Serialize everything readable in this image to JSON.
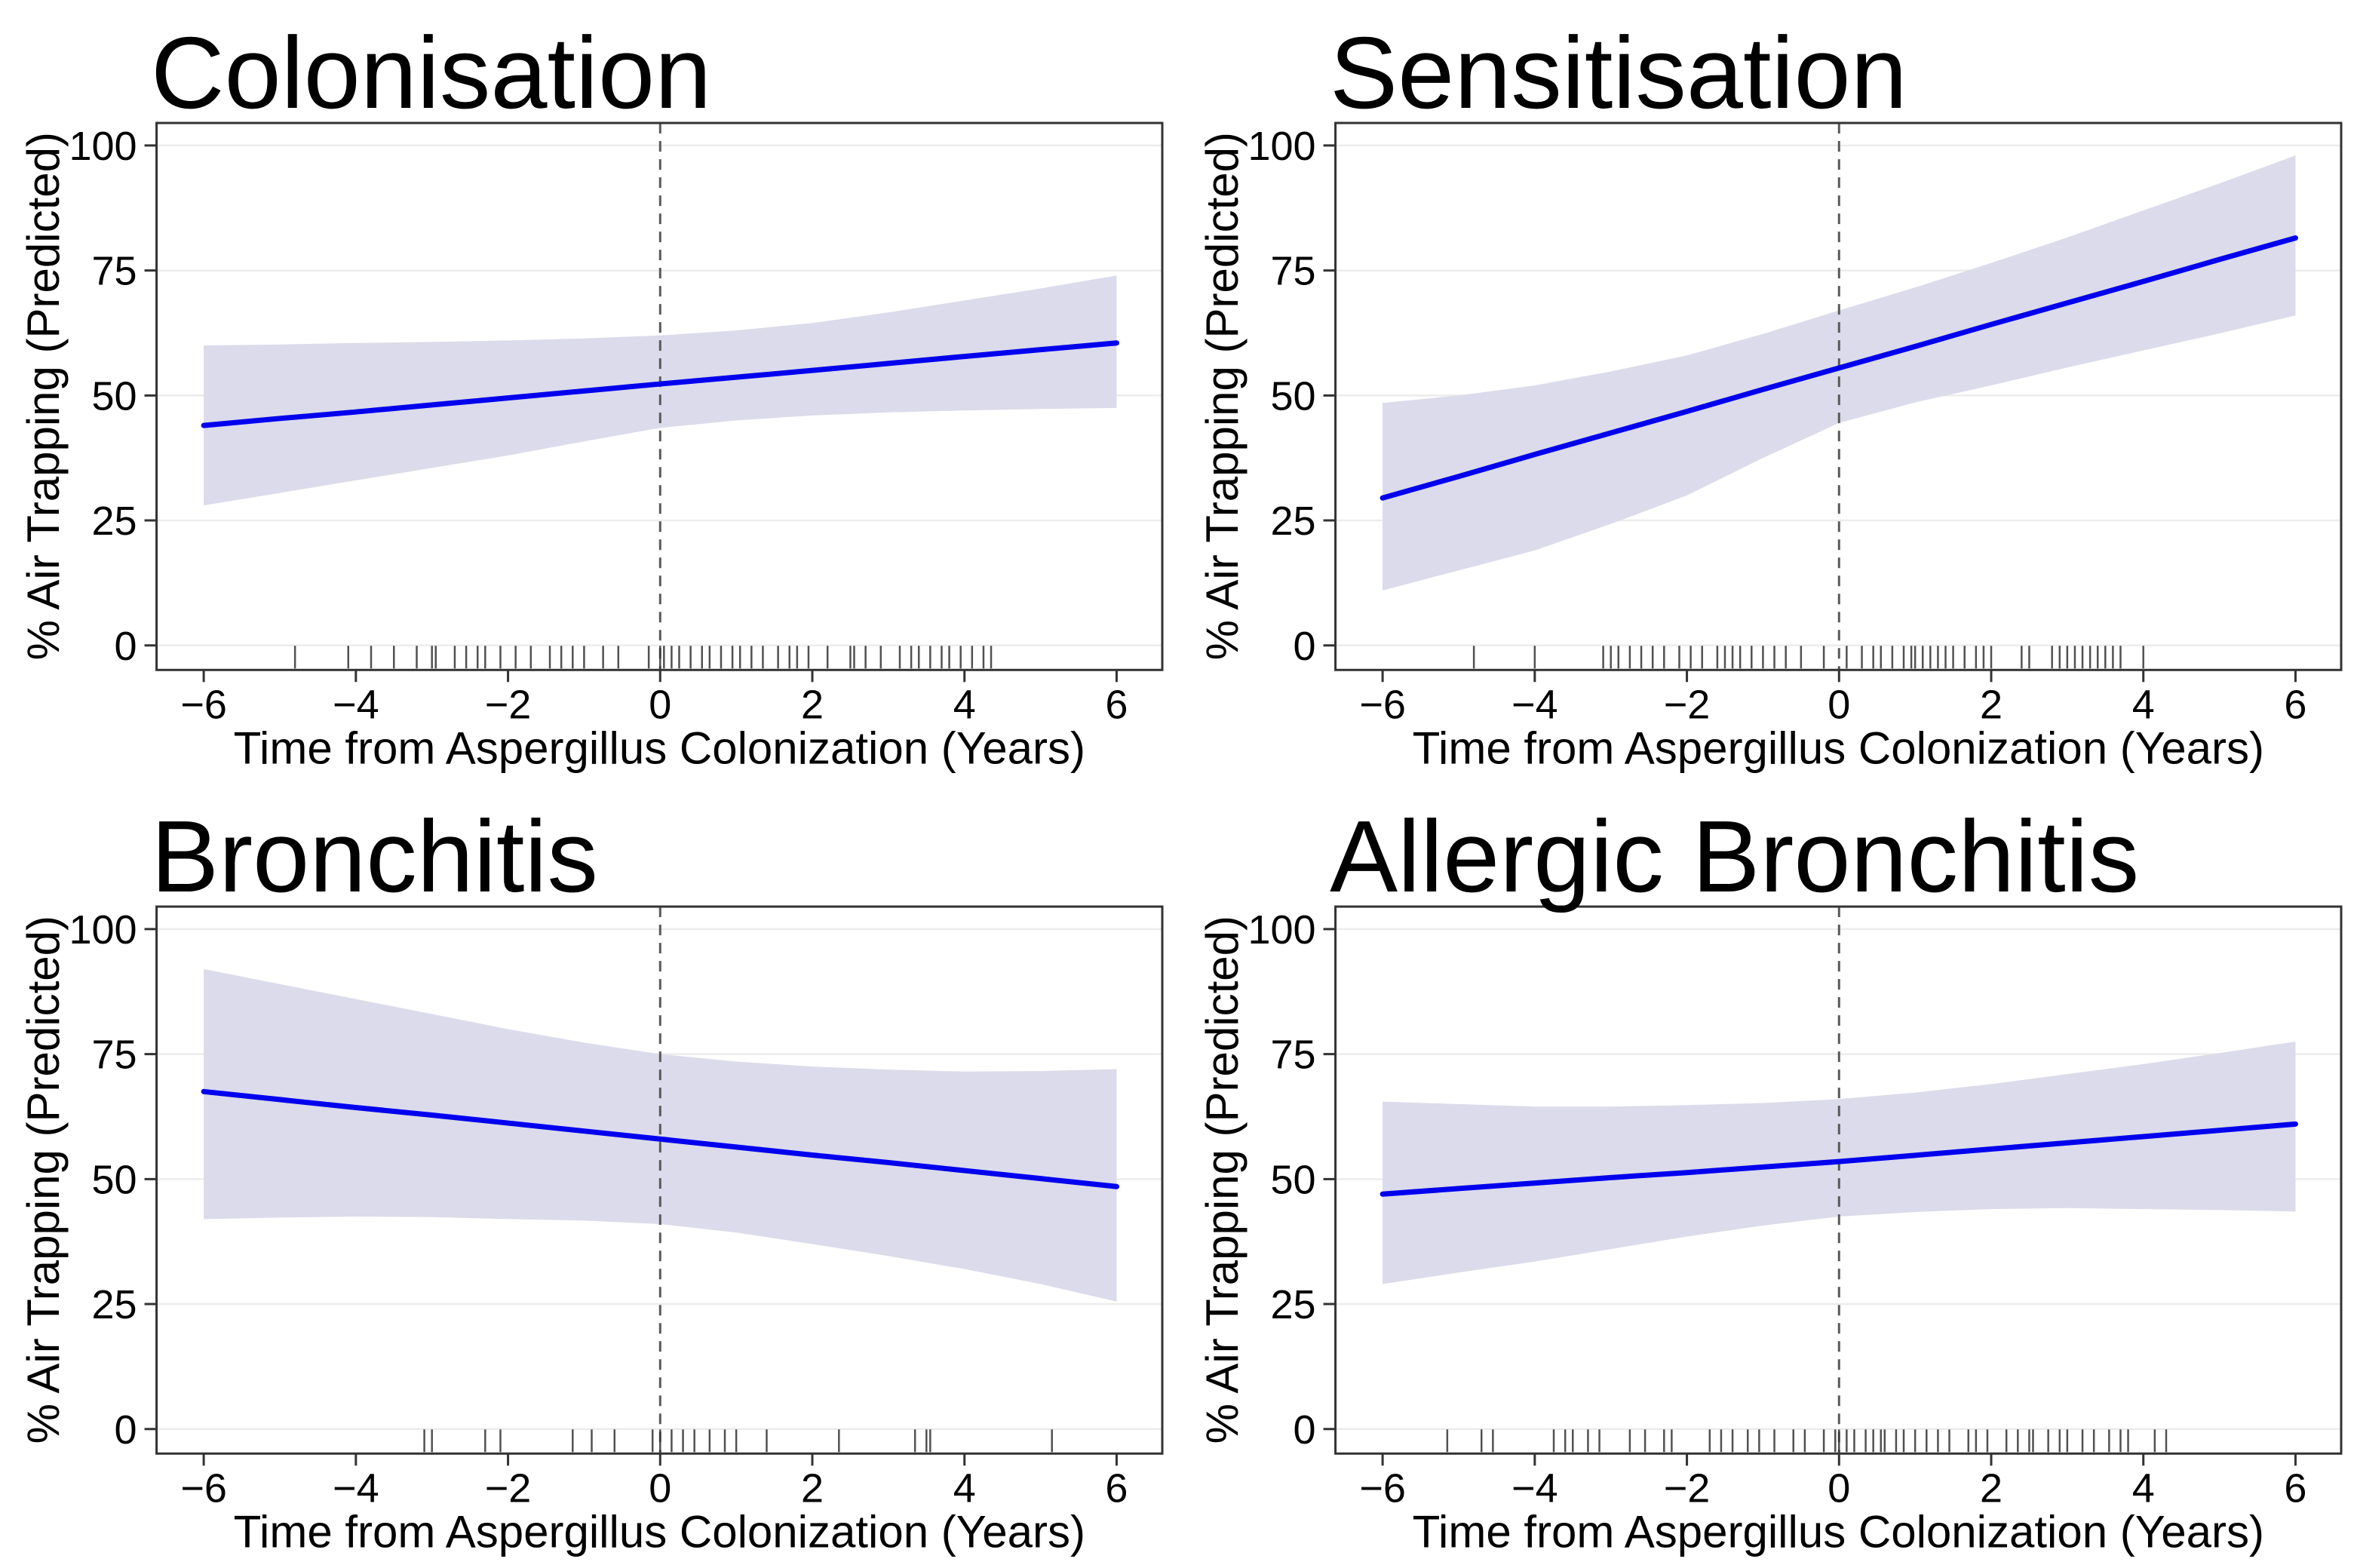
{
  "figure": {
    "background": "#FFFFFF",
    "layout": "2x2-grid",
    "x_ticks": [
      -6,
      -4,
      -2,
      0,
      2,
      4,
      6
    ],
    "y_ticks": [
      0,
      25,
      50,
      75,
      100
    ],
    "colors": {
      "line": "#0000EE",
      "band": "#DBDBEB",
      "grid": "#ECECEC",
      "border": "#333333",
      "dashed_vline": "#595959",
      "rug": "#333333",
      "text": "#000000"
    }
  },
  "chart_data": [
    {
      "type": "line",
      "title": "Colonisation",
      "xlabel": "Time from Aspergillus Colonization (Years)",
      "ylabel": "% Air Trapping (Predicted)",
      "xlim": [
        -6,
        6
      ],
      "ylim": [
        0,
        100
      ],
      "grid": "horizontal-major-only",
      "vline_x": 0,
      "x": [
        -6,
        -5,
        -4,
        -3,
        -2,
        -1,
        0,
        1,
        2,
        3,
        4,
        5,
        6
      ],
      "line": [
        44,
        45.4,
        46.7,
        48.1,
        49.5,
        50.9,
        52.3,
        53.65,
        55,
        56.4,
        57.8,
        59.15,
        60.5
      ],
      "band_upper": [
        60,
        60.2,
        60.5,
        60.7,
        61,
        61.4,
        62,
        63,
        64.5,
        66.6,
        69,
        71.4,
        74
      ],
      "band_lower": [
        28,
        30.5,
        33,
        35.5,
        38,
        40.8,
        43.5,
        45,
        46,
        46.6,
        47,
        47.3,
        47.5
      ],
      "rug": [
        -4.8,
        -4.1,
        -3.8,
        -3.5,
        -3.2,
        -3.0,
        -2.95,
        -2.7,
        -2.55,
        -2.4,
        -2.3,
        -2.1,
        -1.9,
        -1.7,
        -1.45,
        -1.3,
        -1.15,
        -1.0,
        -0.75,
        -0.55,
        -0.15,
        0.0,
        0.05,
        0.15,
        0.25,
        0.4,
        0.55,
        0.65,
        0.8,
        0.95,
        1.05,
        1.2,
        1.35,
        1.55,
        1.7,
        1.8,
        1.95,
        2.2,
        2.5,
        2.55,
        2.7,
        2.9,
        3.15,
        3.3,
        3.4,
        3.55,
        3.7,
        3.8,
        3.95,
        4.1,
        4.25,
        4.35
      ]
    },
    {
      "type": "line",
      "title": "Sensitisation",
      "xlabel": "Time from Aspergillus Colonization (Years)",
      "ylabel": "% Air Trapping (Predicted)",
      "xlim": [
        -6,
        6
      ],
      "ylim": [
        0,
        100
      ],
      "grid": "horizontal-major-only",
      "vline_x": 0,
      "x": [
        -6,
        -5,
        -4,
        -3,
        -2,
        -1,
        0,
        1,
        2,
        3,
        4,
        5,
        6
      ],
      "line": [
        29.5,
        33.8,
        38.2,
        42.5,
        46.8,
        51.2,
        55.5,
        59.8,
        64.2,
        68.5,
        72.8,
        77.2,
        81.5
      ],
      "band_upper": [
        48.5,
        50,
        52,
        54.8,
        58,
        62.3,
        67,
        71.6,
        76.5,
        81.6,
        87,
        92.4,
        98
      ],
      "band_lower": [
        11,
        15,
        19,
        24.3,
        30,
        37.5,
        44.5,
        48.6,
        52,
        55.6,
        59,
        62.4,
        66
      ],
      "rug": [
        -4.8,
        -4.0,
        -3.1,
        -3.0,
        -2.9,
        -2.75,
        -2.6,
        -2.45,
        -2.3,
        -2.1,
        -1.95,
        -1.8,
        -1.6,
        -1.5,
        -1.4,
        -1.3,
        -1.15,
        -1.0,
        -0.85,
        -0.7,
        -0.5,
        -0.2,
        0.1,
        0.3,
        0.45,
        0.55,
        0.7,
        0.85,
        0.95,
        1.0,
        1.1,
        1.2,
        1.3,
        1.4,
        1.5,
        1.65,
        1.8,
        1.9,
        2.0,
        2.4,
        2.5,
        2.8,
        2.9,
        3.0,
        3.1,
        3.2,
        3.3,
        3.4,
        3.5,
        3.6,
        3.7,
        4.0
      ]
    },
    {
      "type": "line",
      "title": "Bronchitis",
      "xlabel": "Time from Aspergillus Colonization (Years)",
      "ylabel": "% Air Trapping (Predicted)",
      "xlim": [
        -6,
        6
      ],
      "ylim": [
        0,
        100
      ],
      "grid": "horizontal-major-only",
      "vline_x": 0,
      "x": [
        -6,
        -5,
        -4,
        -3,
        -2,
        -1,
        0,
        1,
        2,
        3,
        4,
        5,
        6
      ],
      "line": [
        67.5,
        65.9,
        64.3,
        62.8,
        61.2,
        59.6,
        58,
        56.4,
        54.8,
        53.3,
        51.7,
        50.1,
        48.5
      ],
      "band_upper": [
        92,
        89,
        86,
        83,
        80,
        77.3,
        75,
        73.5,
        72.5,
        71.9,
        71.5,
        71.6,
        72
      ],
      "band_lower": [
        42,
        42.3,
        42.5,
        42.4,
        42,
        41.7,
        41,
        39.3,
        37,
        34.6,
        32,
        29,
        25.5
      ],
      "rug": [
        -3.1,
        -3.0,
        -2.3,
        -2.1,
        -1.15,
        -0.9,
        -0.6,
        -0.1,
        0.0,
        0.15,
        0.3,
        0.45,
        0.65,
        0.85,
        1.0,
        1.4,
        2.35,
        3.35,
        3.5,
        3.55,
        5.15
      ]
    },
    {
      "type": "line",
      "title": "Allergic Bronchitis",
      "xlabel": "Time from Aspergillus Colonization (Years)",
      "ylabel": "% Air Trapping (Predicted)",
      "xlim": [
        -6,
        6
      ],
      "ylim": [
        0,
        100
      ],
      "grid": "horizontal-major-only",
      "vline_x": 0,
      "x": [
        -6,
        -5,
        -4,
        -3,
        -2,
        -1,
        0,
        1,
        2,
        3,
        4,
        5,
        6
      ],
      "line": [
        47,
        48.1,
        49.2,
        50.3,
        51.3,
        52.4,
        53.5,
        54.75,
        56,
        57.25,
        58.5,
        59.75,
        61
      ],
      "band_upper": [
        65.5,
        65,
        64.5,
        64.5,
        64.8,
        65.2,
        66,
        67.3,
        69,
        71,
        73,
        75.2,
        77.5
      ],
      "band_lower": [
        29,
        31.3,
        33.5,
        36,
        38.5,
        40.7,
        42.5,
        43.4,
        44,
        44.2,
        44,
        43.8,
        43.5
      ],
      "rug": [
        -5.15,
        -4.7,
        -4.55,
        -3.75,
        -3.6,
        -3.5,
        -3.3,
        -3.15,
        -2.75,
        -2.55,
        -2.3,
        -2.2,
        -1.7,
        -1.55,
        -1.4,
        -1.2,
        -1.05,
        -0.85,
        -0.6,
        -0.45,
        -0.2,
        -0.05,
        0.0,
        0.1,
        0.2,
        0.35,
        0.45,
        0.55,
        0.6,
        0.75,
        0.85,
        1.0,
        1.15,
        1.3,
        1.45,
        1.7,
        1.8,
        1.95,
        2.2,
        2.35,
        2.5,
        2.55,
        2.75,
        2.9,
        3.0,
        3.2,
        3.35,
        3.55,
        3.7,
        3.8,
        4.15,
        4.3
      ]
    }
  ]
}
